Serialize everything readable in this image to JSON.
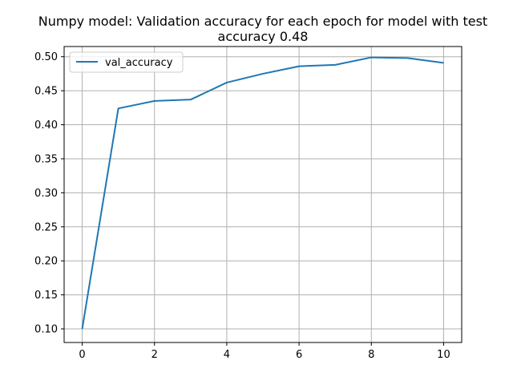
{
  "chart_data": {
    "type": "line",
    "title_lines": [
      "Numpy model: Validation accuracy for each epoch for model with test",
      "accuracy 0.48"
    ],
    "xlabel": "",
    "ylabel": "",
    "xlim": [
      -0.5,
      10.5
    ],
    "ylim": [
      0.08,
      0.515
    ],
    "xticks": [
      0,
      2,
      4,
      6,
      8,
      10
    ],
    "xtick_labels": [
      "0",
      "2",
      "4",
      "6",
      "8",
      "10"
    ],
    "yticks": [
      0.1,
      0.15,
      0.2,
      0.25,
      0.3,
      0.35,
      0.4,
      0.45,
      0.5
    ],
    "ytick_labels": [
      "0.10",
      "0.15",
      "0.20",
      "0.25",
      "0.30",
      "0.35",
      "0.40",
      "0.45",
      "0.50"
    ],
    "grid": true,
    "legend_position": "top-left",
    "series": [
      {
        "name": "val_accuracy",
        "color": "#1f77b4",
        "x": [
          0,
          1,
          2,
          3,
          4,
          5,
          6,
          7,
          8,
          9,
          10
        ],
        "y": [
          0.1,
          0.424,
          0.435,
          0.437,
          0.462,
          0.475,
          0.486,
          0.488,
          0.499,
          0.498,
          0.491
        ]
      }
    ]
  }
}
